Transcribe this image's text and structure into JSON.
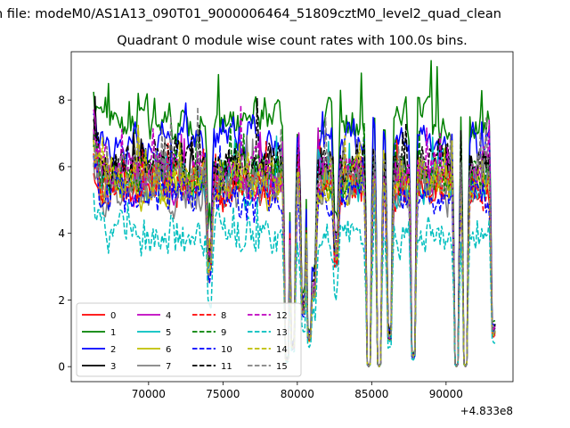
{
  "figure": {
    "suptitle": "n file: modeM0/AS1A13_090T01_9000006464_51809cztM0_level2_quad_clean",
    "offset_label": "+4.833e8"
  },
  "chart_data": {
    "type": "line",
    "title": "Quadrant 0 module wise count rates with 100.0s bins.",
    "xlabel": "",
    "ylabel": "",
    "x_offset": 483300000,
    "xlim": [
      64800,
      94500
    ],
    "ylim": [
      -0.45,
      9.45
    ],
    "xticks": [
      70000,
      75000,
      80000,
      85000,
      90000
    ],
    "xtick_labels": [
      "70000",
      "75000",
      "80000",
      "85000",
      "90000"
    ],
    "yticks": [
      0,
      2,
      4,
      6,
      8
    ],
    "ytick_labels": [
      "0",
      "2",
      "4",
      "6",
      "8"
    ],
    "grid": false,
    "legend": {
      "position": "lower-left",
      "columns": 4
    },
    "x_range": [
      66300,
      93300
    ],
    "dips": [
      {
        "x": 74100,
        "depth": 0.45
      },
      {
        "x": 79300,
        "depth": 0.97
      },
      {
        "x": 79700,
        "depth": 0.9
      },
      {
        "x": 80400,
        "depth": 0.7
      },
      {
        "x": 80800,
        "depth": 0.85
      },
      {
        "x": 81100,
        "depth": 0.6
      },
      {
        "x": 82600,
        "depth": 0.4
      },
      {
        "x": 84800,
        "depth": 1.0
      },
      {
        "x": 85500,
        "depth": 1.0
      },
      {
        "x": 86200,
        "depth": 0.85
      },
      {
        "x": 87800,
        "depth": 0.95
      },
      {
        "x": 90700,
        "depth": 1.0
      },
      {
        "x": 91300,
        "depth": 1.0
      },
      {
        "x": 93200,
        "depth": 0.82
      }
    ],
    "series": [
      {
        "name": "0",
        "color": "#ff0000",
        "dash": "solid",
        "level": 5.4
      },
      {
        "name": "1",
        "color": "#008000",
        "dash": "solid",
        "level": 7.4
      },
      {
        "name": "2",
        "color": "#0000ff",
        "dash": "solid",
        "level": 6.7
      },
      {
        "name": "3",
        "color": "#000000",
        "dash": "solid",
        "level": 5.9
      },
      {
        "name": "4",
        "color": "#bf00bf",
        "dash": "solid",
        "level": 5.7
      },
      {
        "name": "5",
        "color": "#00bfbf",
        "dash": "solid",
        "level": 5.5
      },
      {
        "name": "6",
        "color": "#bfbf00",
        "dash": "solid",
        "level": 5.5
      },
      {
        "name": "7",
        "color": "#808080",
        "dash": "solid",
        "level": 5.3
      },
      {
        "name": "8",
        "color": "#ff0000",
        "dash": "dashed",
        "level": 5.6
      },
      {
        "name": "9",
        "color": "#008000",
        "dash": "dashed",
        "level": 5.8
      },
      {
        "name": "10",
        "color": "#0000ff",
        "dash": "dashed",
        "level": 5.1
      },
      {
        "name": "11",
        "color": "#000000",
        "dash": "dashed",
        "level": 6.2
      },
      {
        "name": "12",
        "color": "#bf00bf",
        "dash": "dashed",
        "level": 5.9
      },
      {
        "name": "13",
        "color": "#00bfbf",
        "dash": "dashed",
        "level": 4.0
      },
      {
        "name": "14",
        "color": "#bfbf00",
        "dash": "dashed",
        "level": 5.6
      },
      {
        "name": "15",
        "color": "#808080",
        "dash": "dashed",
        "level": 5.7
      }
    ]
  }
}
